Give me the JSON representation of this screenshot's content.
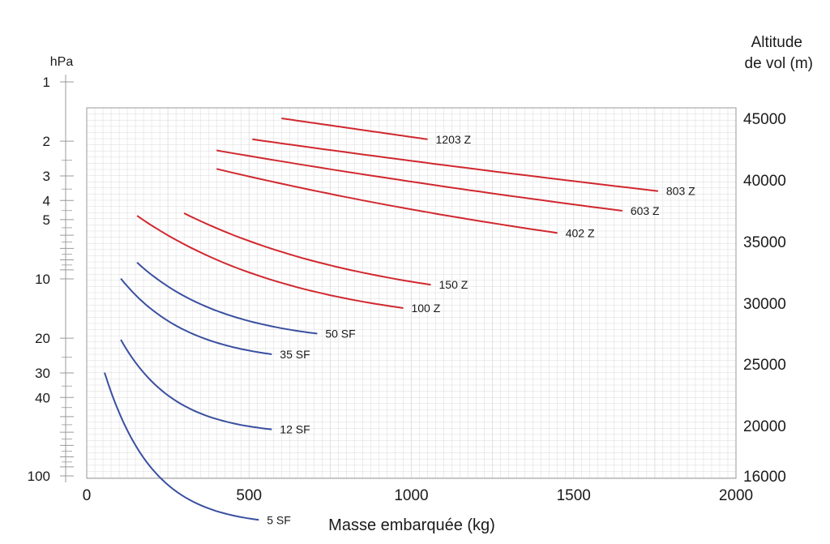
{
  "chart_data": {
    "type": "line",
    "xlabel": "Masse embarquée (kg)",
    "xlim": [
      0,
      2000
    ],
    "x_ticks": [
      "0",
      "500",
      "1000",
      "1500",
      "2000"
    ],
    "left_axis": {
      "title": "hPa",
      "ticks": [
        "1",
        "2",
        "3",
        "4",
        "5",
        "10",
        "20",
        "30",
        "40",
        "100"
      ],
      "tick_values": [
        1,
        2,
        3,
        4,
        5,
        10,
        20,
        30,
        40,
        100
      ],
      "scale": "log"
    },
    "right_axis": {
      "title_line1": "Altitude",
      "title_line2": "de vol (m)",
      "ticks": [
        "45000",
        "40000",
        "35000",
        "30000",
        "25000",
        "20000",
        "16000"
      ],
      "tick_values": [
        45000,
        40000,
        35000,
        30000,
        25000,
        20000,
        16000
      ]
    },
    "grid": true,
    "colors": {
      "red_series": "#d0282e",
      "blue_series": "#3a4fa0",
      "grid": "#d9d9d9",
      "axis": "#9a9a9a"
    },
    "series": [
      {
        "name": "1203 Z",
        "color": "red",
        "x": [
          600,
          1050
        ],
        "y": [
          45000,
          43300
        ],
        "curv": 0.0
      },
      {
        "name": "803 Z",
        "color": "red",
        "x": [
          510,
          1760
        ],
        "y": [
          43300,
          39100
        ],
        "curv": 0.02
      },
      {
        "name": "603 Z",
        "color": "red",
        "x": [
          400,
          1650
        ],
        "y": [
          42400,
          37500
        ],
        "curv": 0.03
      },
      {
        "name": "402 Z",
        "color": "red",
        "x": [
          400,
          1450
        ],
        "y": [
          40900,
          35700
        ],
        "curv": 0.05
      },
      {
        "name": "150 Z",
        "color": "red",
        "x": [
          300,
          1060
        ],
        "y": [
          37300,
          31500
        ],
        "curv": 0.12
      },
      {
        "name": "100 Z",
        "color": "red",
        "x": [
          155,
          975
        ],
        "y": [
          37100,
          29600
        ],
        "curv": 0.16
      },
      {
        "name": "50 SF",
        "color": "blue",
        "x": [
          155,
          710
        ],
        "y": [
          33300,
          27500
        ],
        "curv": 0.2
      },
      {
        "name": "35 SF",
        "color": "blue",
        "x": [
          105,
          570
        ],
        "y": [
          32000,
          25800
        ],
        "curv": 0.22
      },
      {
        "name": "12 SF",
        "color": "blue",
        "x": [
          105,
          570
        ],
        "y": [
          27000,
          19700
        ],
        "curv": 0.28
      },
      {
        "name": "5 SF",
        "color": "blue",
        "x": [
          55,
          530
        ],
        "y": [
          24300,
          12500
        ],
        "curv": 0.32
      }
    ]
  }
}
